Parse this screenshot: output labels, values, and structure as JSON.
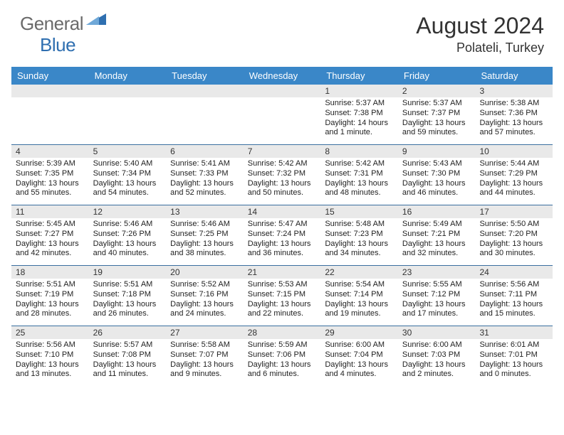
{
  "brand": {
    "part1": "General",
    "part2": "Blue"
  },
  "header": {
    "month_title": "August 2024",
    "location": "Polateli, Turkey"
  },
  "colors": {
    "header_blue": "#3a87c8",
    "row_divider": "#3a6fa0",
    "daybar_bg": "#e9e9e9",
    "text": "#222222",
    "logo_grey": "#6a6a6a",
    "logo_blue": "#2f6fb0"
  },
  "weekdays": [
    "Sunday",
    "Monday",
    "Tuesday",
    "Wednesday",
    "Thursday",
    "Friday",
    "Saturday"
  ],
  "calendar": {
    "start_weekday_index": 4,
    "days": [
      {
        "n": 1,
        "sunrise": "5:37 AM",
        "sunset": "7:38 PM",
        "daylight": "14 hours and 1 minute."
      },
      {
        "n": 2,
        "sunrise": "5:37 AM",
        "sunset": "7:37 PM",
        "daylight": "13 hours and 59 minutes."
      },
      {
        "n": 3,
        "sunrise": "5:38 AM",
        "sunset": "7:36 PM",
        "daylight": "13 hours and 57 minutes."
      },
      {
        "n": 4,
        "sunrise": "5:39 AM",
        "sunset": "7:35 PM",
        "daylight": "13 hours and 55 minutes."
      },
      {
        "n": 5,
        "sunrise": "5:40 AM",
        "sunset": "7:34 PM",
        "daylight": "13 hours and 54 minutes."
      },
      {
        "n": 6,
        "sunrise": "5:41 AM",
        "sunset": "7:33 PM",
        "daylight": "13 hours and 52 minutes."
      },
      {
        "n": 7,
        "sunrise": "5:42 AM",
        "sunset": "7:32 PM",
        "daylight": "13 hours and 50 minutes."
      },
      {
        "n": 8,
        "sunrise": "5:42 AM",
        "sunset": "7:31 PM",
        "daylight": "13 hours and 48 minutes."
      },
      {
        "n": 9,
        "sunrise": "5:43 AM",
        "sunset": "7:30 PM",
        "daylight": "13 hours and 46 minutes."
      },
      {
        "n": 10,
        "sunrise": "5:44 AM",
        "sunset": "7:29 PM",
        "daylight": "13 hours and 44 minutes."
      },
      {
        "n": 11,
        "sunrise": "5:45 AM",
        "sunset": "7:27 PM",
        "daylight": "13 hours and 42 minutes."
      },
      {
        "n": 12,
        "sunrise": "5:46 AM",
        "sunset": "7:26 PM",
        "daylight": "13 hours and 40 minutes."
      },
      {
        "n": 13,
        "sunrise": "5:46 AM",
        "sunset": "7:25 PM",
        "daylight": "13 hours and 38 minutes."
      },
      {
        "n": 14,
        "sunrise": "5:47 AM",
        "sunset": "7:24 PM",
        "daylight": "13 hours and 36 minutes."
      },
      {
        "n": 15,
        "sunrise": "5:48 AM",
        "sunset": "7:23 PM",
        "daylight": "13 hours and 34 minutes."
      },
      {
        "n": 16,
        "sunrise": "5:49 AM",
        "sunset": "7:21 PM",
        "daylight": "13 hours and 32 minutes."
      },
      {
        "n": 17,
        "sunrise": "5:50 AM",
        "sunset": "7:20 PM",
        "daylight": "13 hours and 30 minutes."
      },
      {
        "n": 18,
        "sunrise": "5:51 AM",
        "sunset": "7:19 PM",
        "daylight": "13 hours and 28 minutes."
      },
      {
        "n": 19,
        "sunrise": "5:51 AM",
        "sunset": "7:18 PM",
        "daylight": "13 hours and 26 minutes."
      },
      {
        "n": 20,
        "sunrise": "5:52 AM",
        "sunset": "7:16 PM",
        "daylight": "13 hours and 24 minutes."
      },
      {
        "n": 21,
        "sunrise": "5:53 AM",
        "sunset": "7:15 PM",
        "daylight": "13 hours and 22 minutes."
      },
      {
        "n": 22,
        "sunrise": "5:54 AM",
        "sunset": "7:14 PM",
        "daylight": "13 hours and 19 minutes."
      },
      {
        "n": 23,
        "sunrise": "5:55 AM",
        "sunset": "7:12 PM",
        "daylight": "13 hours and 17 minutes."
      },
      {
        "n": 24,
        "sunrise": "5:56 AM",
        "sunset": "7:11 PM",
        "daylight": "13 hours and 15 minutes."
      },
      {
        "n": 25,
        "sunrise": "5:56 AM",
        "sunset": "7:10 PM",
        "daylight": "13 hours and 13 minutes."
      },
      {
        "n": 26,
        "sunrise": "5:57 AM",
        "sunset": "7:08 PM",
        "daylight": "13 hours and 11 minutes."
      },
      {
        "n": 27,
        "sunrise": "5:58 AM",
        "sunset": "7:07 PM",
        "daylight": "13 hours and 9 minutes."
      },
      {
        "n": 28,
        "sunrise": "5:59 AM",
        "sunset": "7:06 PM",
        "daylight": "13 hours and 6 minutes."
      },
      {
        "n": 29,
        "sunrise": "6:00 AM",
        "sunset": "7:04 PM",
        "daylight": "13 hours and 4 minutes."
      },
      {
        "n": 30,
        "sunrise": "6:00 AM",
        "sunset": "7:03 PM",
        "daylight": "13 hours and 2 minutes."
      },
      {
        "n": 31,
        "sunrise": "6:01 AM",
        "sunset": "7:01 PM",
        "daylight": "13 hours and 0 minutes."
      }
    ]
  },
  "labels": {
    "sunrise": "Sunrise:",
    "sunset": "Sunset:",
    "daylight": "Daylight:"
  }
}
